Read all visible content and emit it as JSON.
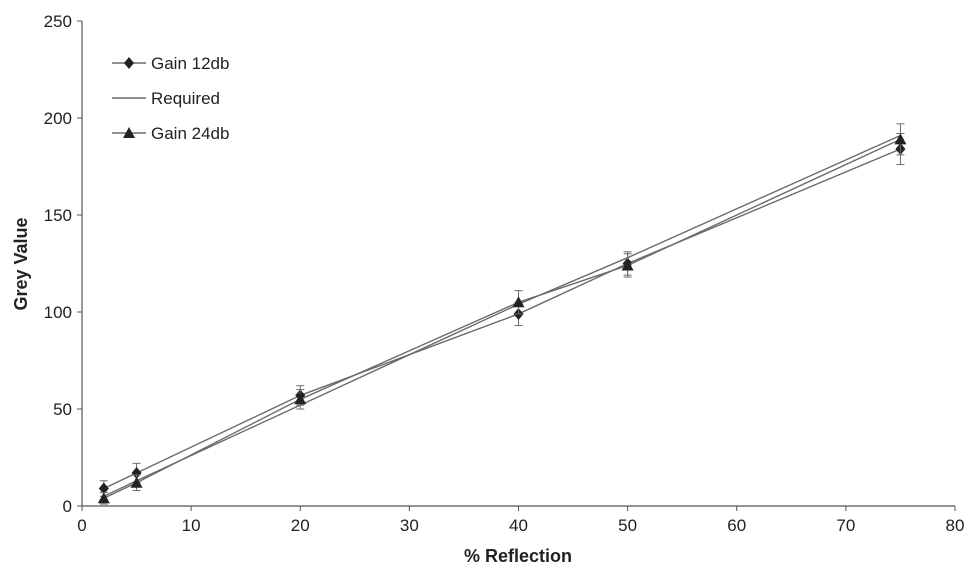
{
  "chart_data": {
    "type": "line",
    "title": "",
    "xlabel": "% Reflection",
    "ylabel": "Grey Value",
    "xlim": [
      0,
      80
    ],
    "ylim": [
      0,
      250
    ],
    "xticks": [
      "0",
      "10",
      "20",
      "30",
      "40",
      "50",
      "60",
      "70",
      "80"
    ],
    "yticks": [
      "0",
      "50",
      "100",
      "150",
      "200",
      "250"
    ],
    "grid": false,
    "legend_position": "top-left",
    "colors": {
      "line": "#6b6b6b",
      "marker": "#222222",
      "axis": "#555555",
      "text": "#222222"
    },
    "series": [
      {
        "name": "Gain 12db",
        "marker": "diamond",
        "x": [
          2,
          5,
          20,
          40,
          50,
          75
        ],
        "y": [
          9,
          17,
          57,
          99,
          125,
          184
        ],
        "error": [
          4,
          5,
          5,
          6,
          6,
          8
        ]
      },
      {
        "name": "Required",
        "marker": "none",
        "x": [
          2,
          5,
          20,
          40,
          50,
          75
        ],
        "y": [
          5,
          13,
          52,
          104,
          128,
          191
        ]
      },
      {
        "name": "Gain 24db",
        "marker": "triangle",
        "x": [
          2,
          5,
          20,
          40,
          50,
          75
        ],
        "y": [
          4,
          12,
          55,
          105,
          124,
          189
        ],
        "error": [
          3,
          4,
          5,
          6,
          6,
          8
        ]
      }
    ]
  }
}
